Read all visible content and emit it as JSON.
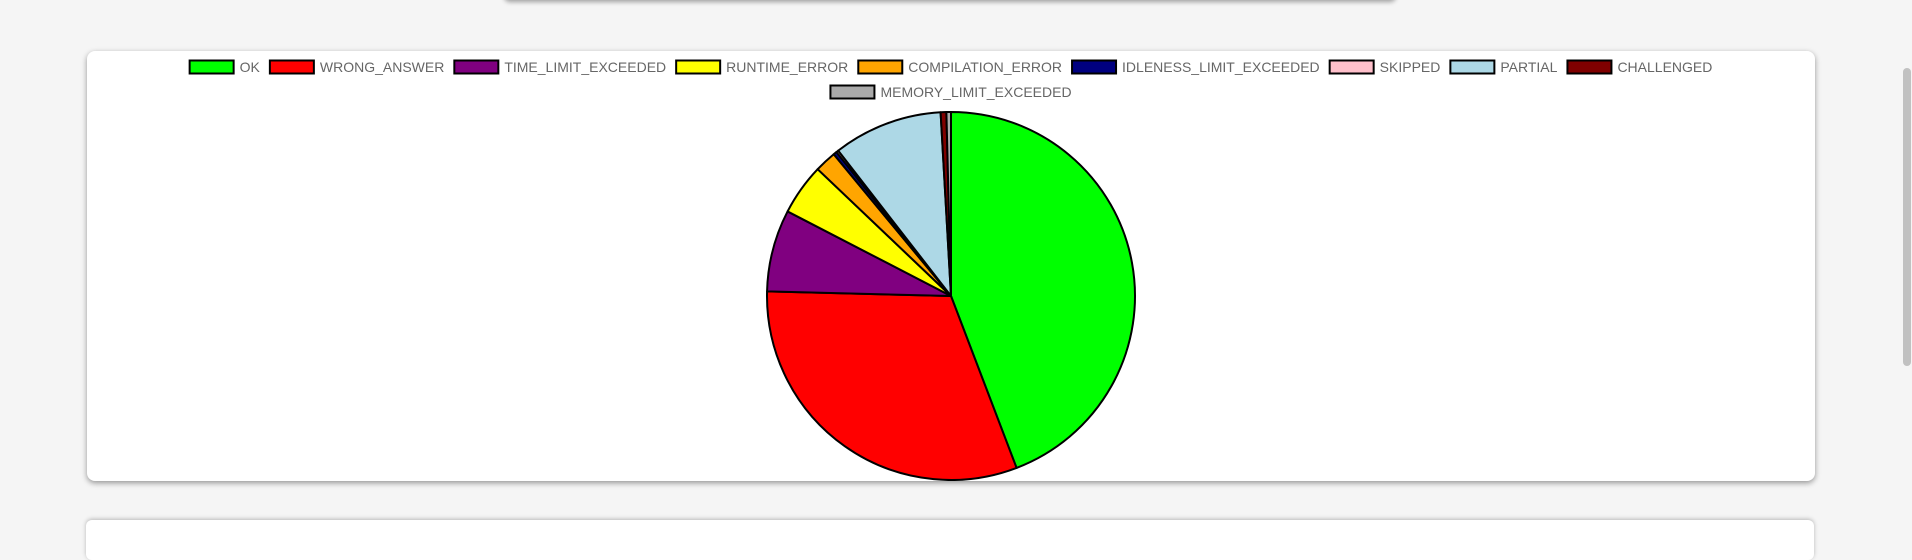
{
  "chart_data": {
    "type": "pie",
    "series": [
      {
        "name": "OK",
        "value": 44.2,
        "color": "#00ff00"
      },
      {
        "name": "WRONG_ANSWER",
        "value": 31.2,
        "color": "#ff0000"
      },
      {
        "name": "TIME_LIMIT_EXCEEDED",
        "value": 7.2,
        "color": "#800080"
      },
      {
        "name": "RUNTIME_ERROR",
        "value": 4.5,
        "color": "#ffff00"
      },
      {
        "name": "COMPILATION_ERROR",
        "value": 1.9,
        "color": "#ffa500"
      },
      {
        "name": "IDLENESS_LIMIT_EXCEEDED",
        "value": 0.3,
        "color": "#000080"
      },
      {
        "name": "SKIPPED",
        "value": 0.2,
        "color": "#ffc0cb"
      },
      {
        "name": "PARTIAL",
        "value": 9.6,
        "color": "#add8e6"
      },
      {
        "name": "CHALLENGED",
        "value": 0.5,
        "color": "#800000"
      },
      {
        "name": "MEMORY_LIMIT_EXCEEDED",
        "value": 0.4,
        "color": "#aaaaaa"
      }
    ],
    "start_angle": "top",
    "direction": "clockwise",
    "legend_position": "top"
  }
}
